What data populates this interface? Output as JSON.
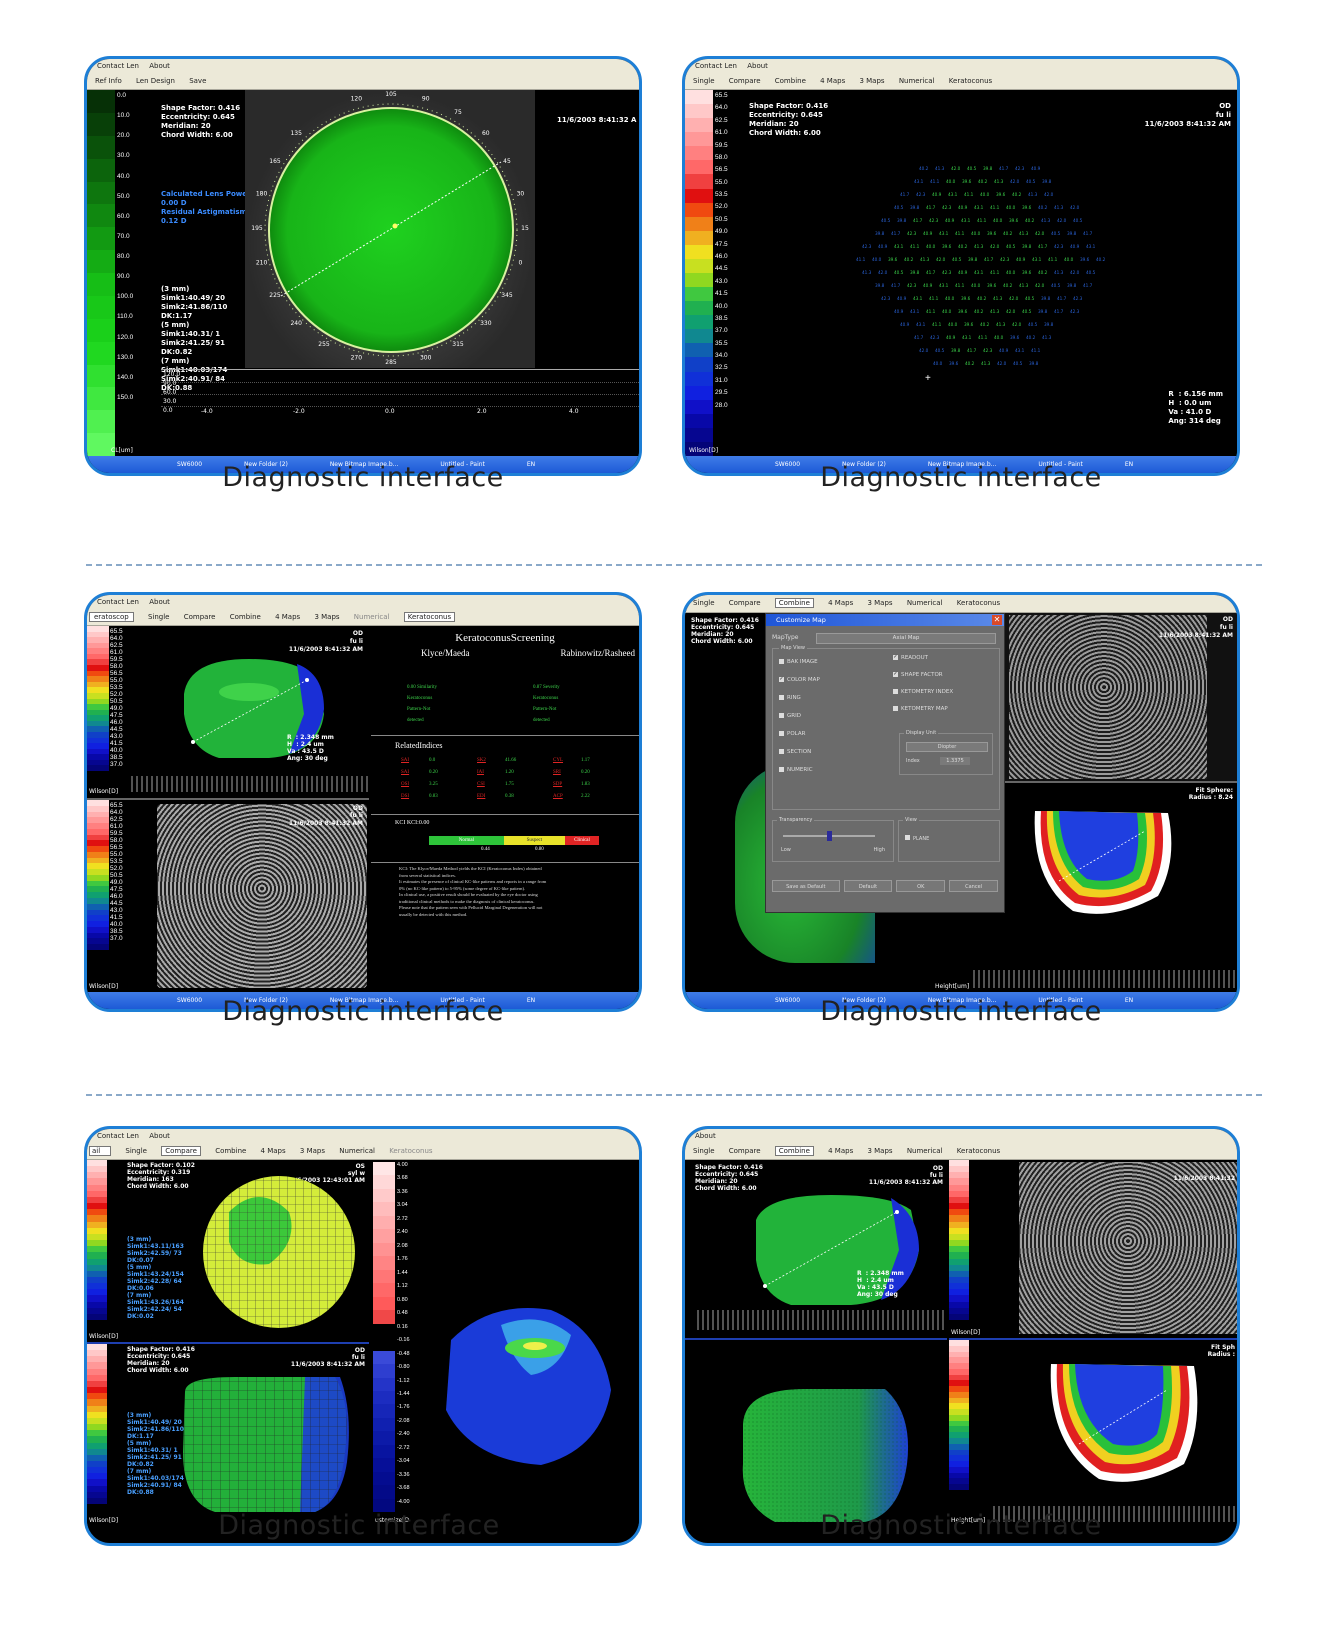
{
  "caption": "Diagnostic interface",
  "win": {
    "menu_contact": "Contact Len",
    "menu_about": "About",
    "toolbar_refinfo": "Ref Info",
    "toolbar_lendesign": "Len Design",
    "toolbar_save": "Save",
    "tab_single": "Single",
    "tab_compare": "Compare",
    "tab_combine": "Combine",
    "tab_4maps": "4 Maps",
    "tab_3maps": "3 Maps",
    "tab_numerical": "Numerical",
    "tab_keratoconus": "Keratoconus",
    "task_start": "SW6000",
    "task_newfolder": "New Folder (2)",
    "task_bitmap": "New Bitmap Image.b...",
    "task_paint": "Untitled - Paint",
    "task_lang": "EN"
  },
  "panel1": {
    "scale_labels": [
      "0.0",
      "10.0",
      "20.0",
      "30.0",
      "40.0",
      "50.0",
      "60.0",
      "70.0",
      "80.0",
      "90.0",
      "100.0",
      "110.0",
      "120.0",
      "130.0",
      "140.0",
      "150.0"
    ],
    "scale_unit": "CL[um]",
    "info": "Shape Factor: 0.416\nEccentricity: 0.645\nMeridian: 20\nChord Width: 6.00",
    "timestamp": "11/6/2003 8:41:32 A",
    "lens_power": "Calculated Lens Power:\n0.00 D\nResidual Astigmatism:\n0.12 D",
    "sim": "(3 mm)\nSimk1:40.49/ 20\nSimk2:41.86/110\nDK:1.17\n(5 mm)\nSimk1:40.31/ 1\nSimk2:41.25/ 91\nDK:0.82\n(7 mm)\nSimk1:40.03/174\nSimk2:40.91/ 84\nDK:0.88",
    "angles": [
      "135",
      "165",
      "180",
      "195",
      "210",
      "225",
      "240",
      "255",
      "270",
      "285",
      "300",
      "315",
      "330",
      "345",
      "0",
      "15",
      "30",
      "45",
      "60",
      "75",
      "90",
      "105",
      "120"
    ],
    "profile_labels": [
      "120.0",
      "90.0",
      "60.0",
      "30.0",
      "0.0"
    ],
    "profile_ticks": [
      "-4.0",
      "-2.0",
      "0.0",
      "2.0",
      "4.0"
    ]
  },
  "panel2": {
    "scale_labels": [
      "65.5",
      "64.0",
      "62.5",
      "61.0",
      "59.5",
      "58.0",
      "56.5",
      "55.0",
      "53.5",
      "52.0",
      "50.5",
      "49.0",
      "47.5",
      "46.0",
      "44.5",
      "43.0",
      "41.5",
      "40.0",
      "38.5",
      "37.0",
      "35.5",
      "34.0",
      "32.5",
      "31.0",
      "29.5",
      "28.0"
    ],
    "scale_unit": "Wilson[D]",
    "info": "Shape Factor: 0.416\nEccentricity: 0.645\nMeridian: 20\nChord Width: 6.00",
    "eye": "OD",
    "patient": "fu li",
    "timestamp": "11/6/2003 8:41:32 AM",
    "readout": "R  : 6.156 mm\nH  : 0.0 um\nVa : 41.0 D\nAng: 314 deg"
  },
  "panel3": {
    "title": "KeratoconusScreening",
    "col_left": "Klyce/Maeda",
    "col_right": "Rabinowitz/Rasheed",
    "left_rows": [
      "0.00  Similarity",
      "Keratoconus",
      "Pattern-Not",
      "detected"
    ],
    "right_rows": [
      "0.87  Severity",
      "Keratoconus",
      "Pattern-Not",
      "detected"
    ],
    "related": "RelatedIndices",
    "indices": [
      [
        "SAI",
        "0.0"
      ],
      [
        "SK2",
        "41.66"
      ],
      [
        "CYL",
        "1.17"
      ],
      [
        "SAI",
        "0.20"
      ],
      [
        "IAI",
        "1.20"
      ],
      [
        "SRI",
        "0.20"
      ],
      [
        "OSI",
        "3.25"
      ],
      [
        "CSI",
        "1.75"
      ],
      [
        "SDP",
        "1.83"
      ],
      [
        "DSI",
        "0.83"
      ],
      [
        "EDI",
        "0.38"
      ],
      [
        "ACP",
        "2.22"
      ]
    ],
    "kci": "KCI  KCI:0.00",
    "bar_labels": [
      "Normal",
      "Suspect",
      "Clinical"
    ],
    "bar_ticks": [
      "0.44",
      "0.80"
    ],
    "note": "KCI: The Klyce/Maeda Method yields the KCI (Keratoconus Index) obtained\nfrom several statistical indices.\nIt estimates the presence of clinical KC-like patterns and reports in a range from\n0% (no KC-like pattern) to 5-95% (some degree of KC-like pattern).\nIn clinical use, a positive result should be evaluated by the eye doctor using\ntraditional clinical methods to make the diagnosis of clinical keratoconus.\nPlease note that the pattern seen with Pellucid Marginal Degeneration will not\nusually be detected with this method.",
    "upper_eye": "OD",
    "upper_patient": "fu li",
    "upper_time": "11/6/2003 8:41:32 AM",
    "upper_readout": "R  : 2.348 mm\nH  : 2.4 um\nVa : 43.5 D\nAng: 30 deg",
    "scale_unit": "Wilson[D]",
    "menu_left": "eratoscop"
  },
  "panel4": {
    "dialog_title": "Customize Map",
    "map_type_label": "MapType",
    "map_type_value": "Axial Map",
    "map_view_label": "Map View",
    "checks_left": [
      [
        "BAK IMAGE",
        false
      ],
      [
        "COLOR MAP",
        true
      ],
      [
        "RING",
        false
      ],
      [
        "GRID",
        false
      ],
      [
        "POLAR",
        false
      ],
      [
        "SECTION",
        false
      ],
      [
        "NUMERIC",
        false
      ]
    ],
    "checks_right": [
      [
        "READOUT",
        true
      ],
      [
        "SHAPE FACTOR",
        true
      ],
      [
        "KETOMETRY INDEX",
        false
      ],
      [
        "KETOMETRY MAP",
        false
      ]
    ],
    "display_unit_label": "Display Unit",
    "display_unit_value": "Diopter",
    "index_label": "Index",
    "index_value": "1.3375",
    "transparency_label": "Transparency",
    "low_label": "Low",
    "high_label": "High",
    "view_label": "View",
    "plane_label": "PLANE",
    "btn_save_default": "Save as Default",
    "btn_default": "Default",
    "btn_ok": "OK",
    "btn_cancel": "Cancel",
    "info": "Shape Factor: 0.416\nEccentricity: 0.645\nMeridian: 20\nChord Width: 6.00",
    "eye": "OD",
    "patient": "fu li",
    "timestamp": "11/6/2003 8:41:32 AM",
    "fit_sphere": "Fit Sphere:\nRadius : 8.24",
    "height_unit": "Height[um]"
  },
  "panel5": {
    "upper_info": "Shape Factor: 0.102\nEccentricity: 0.319\nMeridian: 163\nChord Width: 6.00",
    "upper_eye": "OS",
    "upper_patient": "syl w",
    "upper_time": "11/6/2003 12:43:01 AM",
    "upper_sim": "(3 mm)\nSimk1:43.11/163\nSimk2:42.59/ 73\nDK:0.07\n(5 mm)\nSimk1:43.24/154\nSimk2:42.28/ 64\nDK:0.06\n(7 mm)\nSimk1:43.26/164\nSimk2:42.24/ 54\nDK:0.02",
    "lower_info": "Shape Factor: 0.416\nEccentricity: 0.645\nMeridian: 20\nChord Width: 6.00",
    "lower_eye": "OD",
    "lower_patient": "fu li",
    "lower_time": "11/6/2003 8:41:32 AM",
    "lower_sim": "(3 mm)\nSimk1:40.49/ 20\nSimk2:41.86/110\nDK:1.17\n(5 mm)\nSimk1:40.31/ 1\nSimk2:41.25/ 91\nDK:0.82\n(7 mm)\nSimk1:40.03/174\nSimk2:40.91/ 84\nDK:0.88",
    "diff_scale": [
      "4.00",
      "3.68",
      "3.36",
      "3.04",
      "2.72",
      "2.40",
      "2.08",
      "1.76",
      "1.44",
      "1.12",
      "0.80",
      "0.48",
      "0.16",
      "-0.16",
      "-0.48",
      "-0.80",
      "-1.12",
      "-1.44",
      "-1.76",
      "-2.08",
      "-2.40",
      "-2.72",
      "-3.04",
      "-3.36",
      "-3.68",
      "-4.00"
    ],
    "diff_unit": "ustomize[D",
    "scale_unit": "Wilson[D]",
    "menu_left": "ail"
  },
  "panel6": {
    "info": "Shape Factor: 0.416\nEccentricity: 0.645\nMeridian: 20\nChord Width: 6.00",
    "eye": "OD",
    "patient": "fu li",
    "timestamp": "11/6/2003 8:41:32 AM",
    "readout": "R  : 2.348 mm\nH  : 2.4 um\nVa : 43.5 D\nAng: 30 deg",
    "timestamp_right": "11/6/2003 8:41:32",
    "fit_sphere": "Fit Sph\nRadius :",
    "height_unit": "Height[um]",
    "scale_unit": "Wilson[D]"
  }
}
